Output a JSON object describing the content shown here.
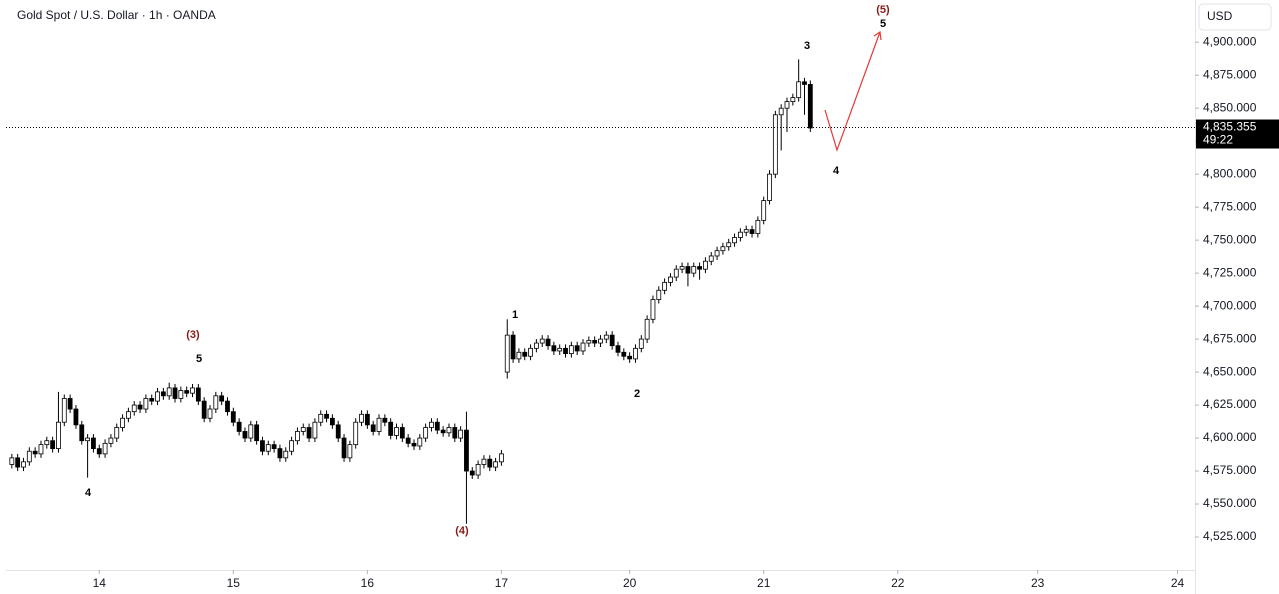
{
  "chart_data": {
    "type": "candlestick",
    "title": "Gold Spot / U.S. Dollar · 1h · OANDA",
    "currency": "USD",
    "up_color": "#ffffff",
    "down_color": "#000000",
    "edge_color": "#000000",
    "open": [
      4580,
      4585,
      4578,
      4582,
      4590,
      4588,
      4595,
      4598,
      4592,
      4612,
      4630,
      4622,
      4610,
      4598,
      4600,
      4592,
      4588,
      4596,
      4600,
      4608,
      4615,
      4620,
      4625,
      4622,
      4630,
      4628,
      4635,
      4632,
      4638,
      4630,
      4636,
      4634,
      4638,
      4628,
      4615,
      4622,
      4632,
      4628,
      4620,
      4612,
      4605,
      4600,
      4610,
      4598,
      4590,
      4595,
      4592,
      4585,
      4590,
      4598,
      4605,
      4608,
      4600,
      4612,
      4618,
      4615,
      4610,
      4600,
      4585,
      4595,
      4612,
      4618,
      4610,
      4605,
      4615,
      4612,
      4602,
      4608,
      4600,
      4596,
      4594,
      4600,
      4608,
      4612,
      4606,
      4604,
      4608,
      4600,
      4606,
      4575,
      4572,
      4580,
      4584,
      4578,
      4582,
      4650,
      4678,
      4660,
      4665,
      4662,
      4668,
      4672,
      4675,
      4670,
      4666,
      4668,
      4664,
      4670,
      4666,
      4672,
      4674,
      4672,
      4675,
      4678,
      4670,
      4665,
      4662,
      4660,
      4668,
      4675,
      4690,
      4705,
      4712,
      4718,
      4722,
      4728,
      4730,
      4725,
      4730,
      4728,
      4734,
      4738,
      4742,
      4745,
      4748,
      4752,
      4756,
      4758,
      4755,
      4765,
      4780,
      4800,
      4845,
      4850,
      4855,
      4858,
      4870,
      4868
    ],
    "high": [
      4588,
      4588,
      4585,
      4593,
      4593,
      4598,
      4601,
      4601,
      4635,
      4633,
      4633,
      4625,
      4613,
      4603,
      4603,
      4595,
      4599,
      4603,
      4611,
      4618,
      4623,
      4628,
      4628,
      4633,
      4633,
      4638,
      4638,
      4642,
      4641,
      4639,
      4639,
      4641,
      4641,
      4631,
      4625,
      4635,
      4635,
      4631,
      4623,
      4615,
      4608,
      4613,
      4613,
      4601,
      4598,
      4598,
      4595,
      4593,
      4601,
      4608,
      4611,
      4611,
      4615,
      4621,
      4621,
      4618,
      4613,
      4603,
      4598,
      4615,
      4621,
      4621,
      4613,
      4618,
      4618,
      4615,
      4611,
      4611,
      4603,
      4599,
      4603,
      4611,
      4615,
      4615,
      4609,
      4611,
      4611,
      4609,
      4620,
      4578,
      4583,
      4587,
      4587,
      4585,
      4591,
      4690,
      4681,
      4668,
      4668,
      4671,
      4675,
      4678,
      4678,
      4673,
      4671,
      4671,
      4673,
      4673,
      4675,
      4677,
      4677,
      4678,
      4681,
      4681,
      4673,
      4668,
      4665,
      4671,
      4678,
      4693,
      4708,
      4715,
      4721,
      4725,
      4731,
      4733,
      4733,
      4733,
      4733,
      4737,
      4741,
      4745,
      4748,
      4751,
      4755,
      4759,
      4761,
      4761,
      4768,
      4783,
      4803,
      4848,
      4853,
      4858,
      4861,
      4887,
      4873,
      4871
    ],
    "low": [
      4577,
      4575,
      4575,
      4579,
      4585,
      4585,
      4592,
      4589,
      4589,
      4609,
      4619,
      4607,
      4595,
      4570,
      4589,
      4585,
      4585,
      4593,
      4597,
      4605,
      4612,
      4617,
      4619,
      4619,
      4625,
      4625,
      4629,
      4629,
      4627,
      4627,
      4631,
      4631,
      4625,
      4612,
      4612,
      4619,
      4625,
      4617,
      4609,
      4602,
      4597,
      4597,
      4595,
      4587,
      4587,
      4589,
      4582,
      4582,
      4587,
      4595,
      4602,
      4597,
      4597,
      4609,
      4612,
      4607,
      4597,
      4582,
      4582,
      4592,
      4609,
      4607,
      4602,
      4602,
      4609,
      4599,
      4599,
      4597,
      4593,
      4591,
      4591,
      4597,
      4605,
      4603,
      4601,
      4601,
      4597,
      4597,
      4535,
      4569,
      4569,
      4577,
      4575,
      4575,
      4579,
      4645,
      4657,
      4657,
      4659,
      4659,
      4665,
      4669,
      4667,
      4663,
      4663,
      4661,
      4661,
      4663,
      4663,
      4669,
      4669,
      4669,
      4672,
      4667,
      4662,
      4659,
      4657,
      4657,
      4665,
      4672,
      4687,
      4702,
      4709,
      4715,
      4719,
      4725,
      4715,
      4722,
      4720,
      4725,
      4731,
      4735,
      4739,
      4742,
      4745,
      4749,
      4753,
      4752,
      4752,
      4762,
      4777,
      4797,
      4818,
      4832,
      4852,
      4855,
      4845,
      4832
    ],
    "close": [
      4585,
      4578,
      4582,
      4590,
      4588,
      4595,
      4598,
      4592,
      4612,
      4630,
      4622,
      4610,
      4598,
      4600,
      4592,
      4588,
      4596,
      4600,
      4608,
      4615,
      4620,
      4625,
      4622,
      4630,
      4628,
      4635,
      4632,
      4638,
      4630,
      4636,
      4634,
      4638,
      4628,
      4615,
      4622,
      4632,
      4628,
      4620,
      4612,
      4605,
      4600,
      4610,
      4598,
      4590,
      4595,
      4592,
      4585,
      4590,
      4598,
      4605,
      4608,
      4600,
      4612,
      4618,
      4615,
      4610,
      4600,
      4585,
      4595,
      4612,
      4618,
      4610,
      4605,
      4615,
      4612,
      4602,
      4608,
      4600,
      4596,
      4594,
      4600,
      4608,
      4612,
      4606,
      4604,
      4608,
      4600,
      4606,
      4575,
      4572,
      4580,
      4584,
      4578,
      4582,
      4588,
      4678,
      4660,
      4665,
      4662,
      4668,
      4672,
      4675,
      4670,
      4666,
      4668,
      4664,
      4670,
      4666,
      4672,
      4674,
      4672,
      4675,
      4678,
      4670,
      4665,
      4662,
      4660,
      4668,
      4675,
      4690,
      4705,
      4712,
      4718,
      4722,
      4728,
      4730,
      4725,
      4730,
      4728,
      4734,
      4738,
      4742,
      4745,
      4748,
      4752,
      4756,
      4758,
      4755,
      4765,
      4780,
      4800,
      4845,
      4850,
      4855,
      4858,
      4870,
      4868,
      4835
    ],
    "xlim": [
      -1,
      203
    ],
    "xticks": [
      {
        "value": 15,
        "label": "14"
      },
      {
        "value": 38,
        "label": "15"
      },
      {
        "value": 61,
        "label": "16"
      },
      {
        "value": 84,
        "label": "17"
      },
      {
        "value": 106,
        "label": "20"
      },
      {
        "value": 129,
        "label": "21"
      },
      {
        "value": 152,
        "label": "22"
      },
      {
        "value": 176,
        "label": "23"
      },
      {
        "value": 200,
        "label": "24"
      }
    ],
    "ylim": [
      4500,
      4932
    ],
    "yticks": [
      {
        "value": 4525,
        "label": "4,525.000"
      },
      {
        "value": 4550,
        "label": "4,550.000"
      },
      {
        "value": 4575,
        "label": "4,575.000"
      },
      {
        "value": 4600,
        "label": "4,600.000"
      },
      {
        "value": 4625,
        "label": "4,625.000"
      },
      {
        "value": 4650,
        "label": "4,650.000"
      },
      {
        "value": 4675,
        "label": "4,675.000"
      },
      {
        "value": 4700,
        "label": "4,700.000"
      },
      {
        "value": 4725,
        "label": "4,725.000"
      },
      {
        "value": 4750,
        "label": "4,750.000"
      },
      {
        "value": 4775,
        "label": "4,775.000"
      },
      {
        "value": 4800,
        "label": "4,800.000"
      },
      {
        "value": 4825,
        "label": "4,825.000"
      },
      {
        "value": 4850,
        "label": "4,850.000"
      },
      {
        "value": 4875,
        "label": "4,875.000"
      },
      {
        "value": 4900,
        "label": "4,900.000"
      }
    ],
    "last_price": {
      "value": 4835.355,
      "label": "4,835.355"
    },
    "countdown": "49:22",
    "annotations": [
      {
        "text": "(5)",
        "color": "#8b1a1a"
      },
      {
        "text": "5",
        "color": "#000000"
      },
      {
        "text": "3",
        "color": "#000000"
      },
      {
        "text": "4",
        "color": "#000000"
      },
      {
        "text": "1",
        "color": "#000000"
      },
      {
        "text": "2",
        "color": "#000000"
      },
      {
        "text": "(3)",
        "color": "#8b1a1a"
      },
      {
        "text": "5",
        "color": "#000000"
      },
      {
        "text": "4",
        "color": "#000000"
      },
      {
        "text": "(4)",
        "color": "#8b1a1a"
      }
    ]
  }
}
